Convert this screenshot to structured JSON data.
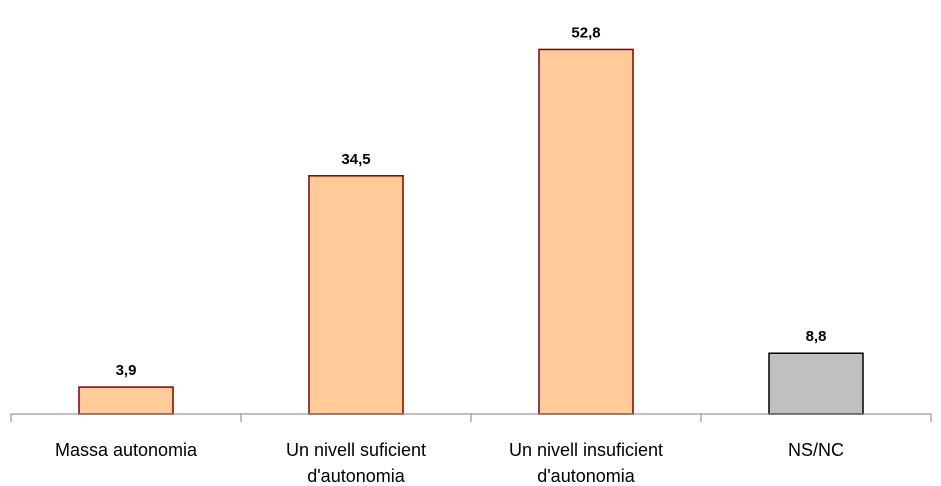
{
  "chart_data": {
    "type": "bar",
    "categories": [
      [
        "Massa autonomia"
      ],
      [
        "Un nivell suficient",
        "d'autonomia"
      ],
      [
        "Un nivell insuficient",
        "d'autonomia"
      ],
      [
        "NS/NC"
      ]
    ],
    "values": [
      3.9,
      34.5,
      52.8,
      8.8
    ],
    "value_labels": [
      "3,9",
      "34,5",
      "52,8",
      "8,8"
    ],
    "ylim": [
      0,
      57.5
    ],
    "grid": false,
    "legend": "none",
    "bar_colors": [
      "#FFCC99",
      "#FFCC99",
      "#FFCC99",
      "#C0C0C0"
    ],
    "bar_border_colors": [
      "#800000",
      "#800000",
      "#800000",
      "#000000"
    ],
    "axis_color": "#808080"
  }
}
